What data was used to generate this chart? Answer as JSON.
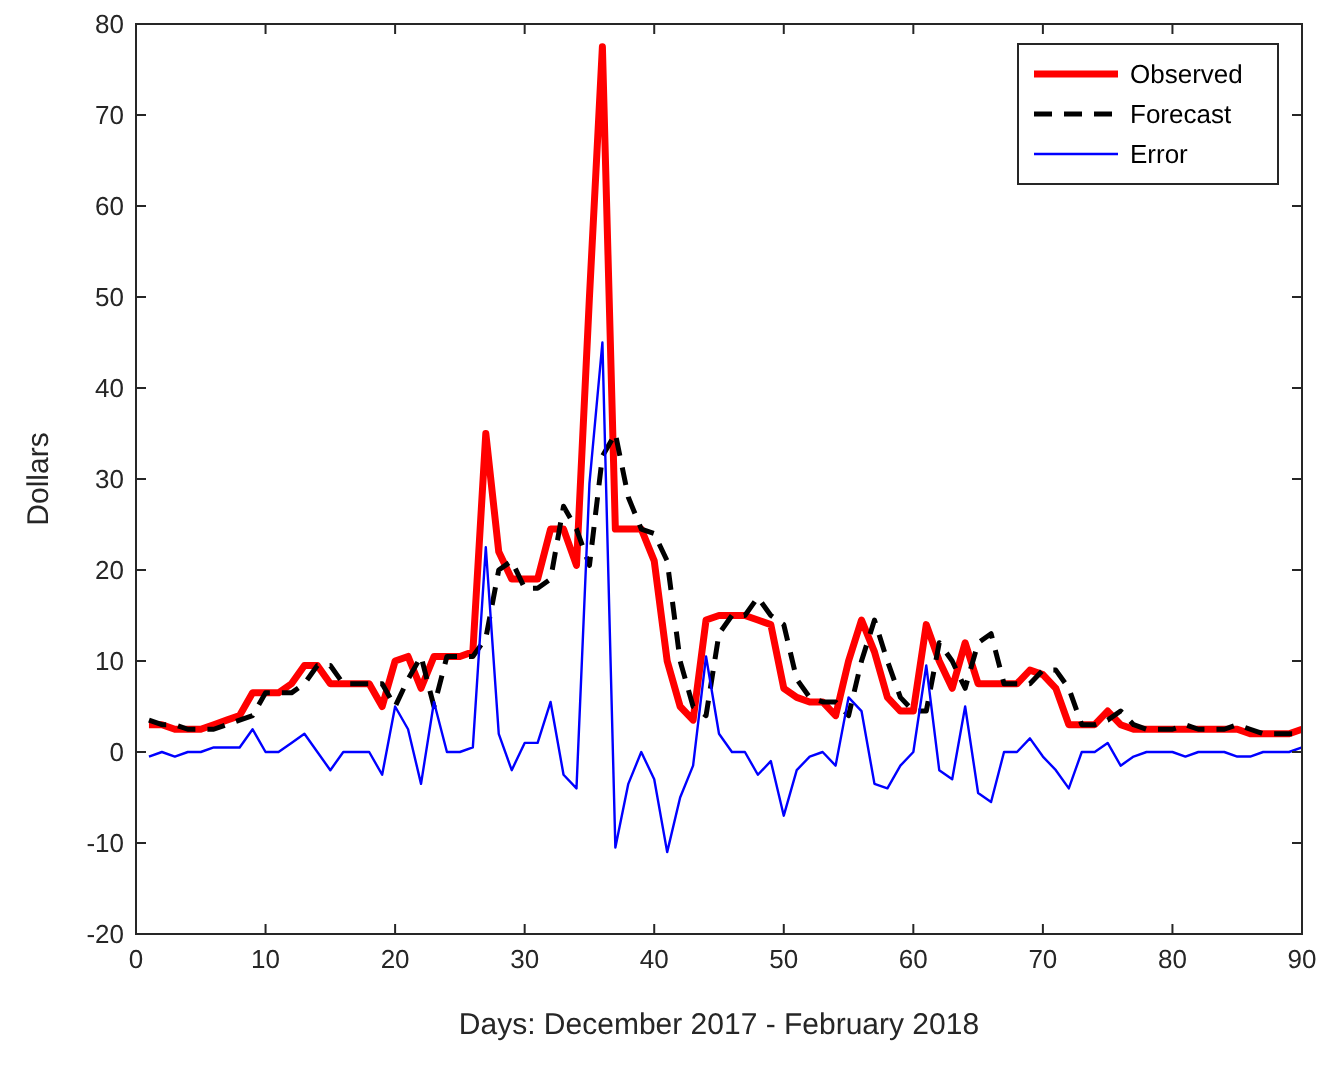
{
  "chart_data": {
    "type": "line",
    "xlabel": "Days: December 2017 - February 2018",
    "ylabel": "Dollars",
    "x": [
      1,
      2,
      3,
      4,
      5,
      6,
      7,
      8,
      9,
      10,
      11,
      12,
      13,
      14,
      15,
      16,
      17,
      18,
      19,
      20,
      21,
      22,
      23,
      24,
      25,
      26,
      27,
      28,
      29,
      30,
      31,
      32,
      33,
      34,
      35,
      36,
      37,
      38,
      39,
      40,
      41,
      42,
      43,
      44,
      45,
      46,
      47,
      48,
      49,
      50,
      51,
      52,
      53,
      54,
      55,
      56,
      57,
      58,
      59,
      60,
      61,
      62,
      63,
      64,
      65,
      66,
      67,
      68,
      69,
      70,
      71,
      72,
      73,
      74,
      75,
      76,
      77,
      78,
      79,
      80,
      81,
      82,
      83,
      84,
      85,
      86,
      87,
      88,
      89,
      90
    ],
    "xlim": [
      0,
      90
    ],
    "xticks": [
      0,
      10,
      20,
      30,
      40,
      50,
      60,
      70,
      80,
      90
    ],
    "ylim": [
      -20,
      80
    ],
    "yticks": [
      -20,
      -10,
      0,
      10,
      20,
      30,
      40,
      50,
      60,
      70,
      80
    ],
    "grid": false,
    "legend": "top right",
    "series": [
      {
        "name": "Observed",
        "color": "#ff0000",
        "line_style": "solid",
        "values": [
          3,
          3,
          2.5,
          2.5,
          2.5,
          3,
          3.5,
          4,
          6.5,
          6.5,
          6.5,
          7.5,
          9.5,
          9.5,
          7.5,
          7.5,
          7.5,
          7.5,
          5,
          10,
          10.5,
          7,
          10.5,
          10.5,
          10.5,
          11,
          35,
          22,
          19,
          19,
          19,
          24.5,
          24.5,
          20.5,
          50,
          77.5,
          24.5,
          24.5,
          24.5,
          21,
          10,
          5,
          3.5,
          14.5,
          15,
          15,
          15,
          14.5,
          14,
          7,
          6,
          5.5,
          5.5,
          4,
          10,
          14.5,
          11,
          6,
          4.5,
          4.5,
          14,
          10,
          7,
          12,
          7.5,
          7.5,
          7.5,
          7.5,
          9,
          8.5,
          7,
          3,
          3,
          3,
          4.5,
          3,
          2.5,
          2.5,
          2.5,
          2.5,
          2.5,
          2.5,
          2.5,
          2.5,
          2.5,
          2,
          2,
          2,
          2,
          2.5
        ]
      },
      {
        "name": "Forecast",
        "color": "#000000",
        "line_style": "dashed",
        "values": [
          3.5,
          3,
          3,
          2.5,
          2.5,
          2.5,
          3,
          3.5,
          4,
          6.5,
          6.5,
          6.5,
          7.5,
          9.5,
          9.5,
          7.5,
          7.5,
          7.5,
          7.5,
          5,
          8,
          10.5,
          5,
          10.5,
          10.5,
          10.5,
          12.5,
          20,
          21,
          18,
          18,
          19,
          27,
          24.5,
          20.5,
          32.5,
          35,
          28,
          24.5,
          24,
          21,
          10,
          5,
          4,
          13,
          15,
          15,
          17,
          15,
          14,
          8,
          6,
          5.5,
          5.5,
          4,
          10,
          14.5,
          10,
          6,
          4.5,
          4.5,
          12,
          10,
          7,
          12,
          13,
          7.5,
          7.5,
          7.5,
          9,
          9,
          7,
          3,
          3,
          3.5,
          4.5,
          3,
          2.5,
          2.5,
          2.5,
          3,
          2.5,
          2.5,
          2.5,
          3,
          2.5,
          2,
          2,
          2,
          2
        ]
      },
      {
        "name": "Error",
        "color": "#0000ff",
        "line_style": "solid",
        "values": [
          -0.5,
          0,
          -0.5,
          0,
          0,
          0.5,
          0.5,
          0.5,
          2.5,
          0,
          0,
          1,
          2,
          0,
          -2,
          0,
          0,
          0,
          -2.5,
          5,
          2.5,
          -3.5,
          5.5,
          0,
          0,
          0.5,
          22.5,
          2,
          -2,
          1,
          1,
          5.5,
          -2.5,
          -4,
          29.5,
          45,
          -10.5,
          -3.5,
          0,
          -3,
          -11,
          -5,
          -1.5,
          10.5,
          2,
          0,
          0,
          -2.5,
          -1,
          -7,
          -2,
          -0.5,
          0,
          -1.5,
          6,
          4.5,
          -3.5,
          -4,
          -1.5,
          0,
          9.5,
          -2,
          -3,
          5,
          -4.5,
          -5.5,
          0,
          0,
          1.5,
          -0.5,
          -2,
          -4,
          0,
          0,
          1,
          -1.5,
          -0.5,
          0,
          0,
          0,
          -0.5,
          0,
          0,
          0,
          -0.5,
          -0.5,
          0,
          0,
          0,
          0.5
        ]
      }
    ]
  }
}
